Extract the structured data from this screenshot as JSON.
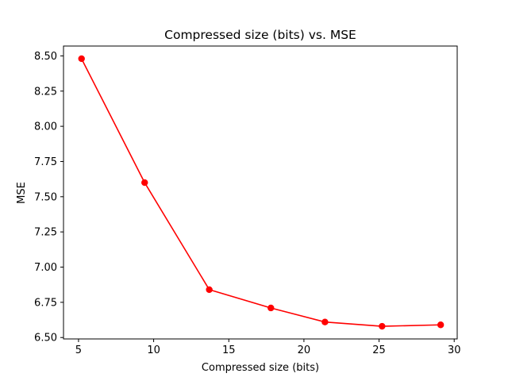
{
  "chart_data": {
    "type": "line",
    "title": "Compressed size (bits) vs. MSE",
    "xlabel": "Compressed size (bits)",
    "ylabel": "MSE",
    "xlim": [
      4.0,
      30.2
    ],
    "ylim": [
      6.49,
      8.57
    ],
    "x_ticks": [
      5,
      10,
      15,
      20,
      25,
      30
    ],
    "y_ticks": [
      6.5,
      6.75,
      7.0,
      7.25,
      7.5,
      7.75,
      8.0,
      8.25,
      8.5
    ],
    "x_tick_labels": [
      "5",
      "10",
      "15",
      "20",
      "25",
      "30"
    ],
    "y_tick_labels": [
      "6.50",
      "6.75",
      "7.00",
      "7.25",
      "7.50",
      "7.75",
      "8.00",
      "8.25",
      "8.50"
    ],
    "grid": false,
    "series": [
      {
        "color": "#ff0000",
        "marker": "circle",
        "x": [
          5.2,
          9.4,
          13.7,
          17.8,
          21.4,
          25.2,
          29.1
        ],
        "y": [
          8.48,
          7.6,
          6.84,
          6.71,
          6.61,
          6.58,
          6.59
        ]
      }
    ]
  }
}
